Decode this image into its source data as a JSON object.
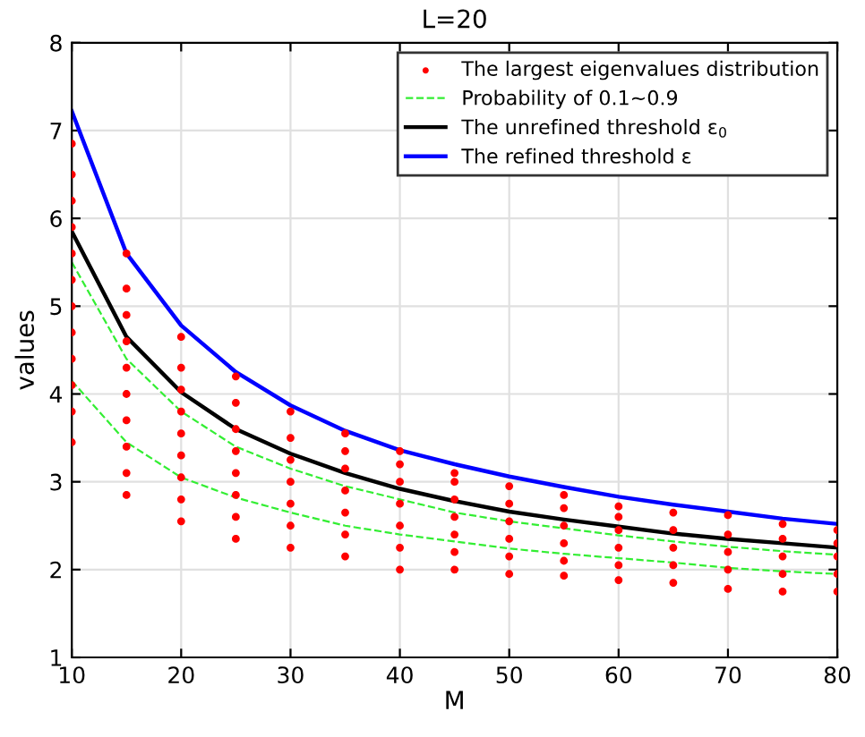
{
  "chart_data": {
    "type": "line",
    "title": "L=20",
    "xlabel": "M",
    "ylabel": "values",
    "xlim": [
      10,
      80
    ],
    "ylim": [
      1,
      8
    ],
    "xticks": [
      10,
      20,
      30,
      40,
      50,
      60,
      70,
      80
    ],
    "yticks": [
      1,
      2,
      3,
      4,
      5,
      6,
      7,
      8
    ],
    "grid": true,
    "legend": "top right",
    "series": [
      {
        "name": "The largest eigenvalues distribution",
        "type": "scatter",
        "marker": "circle",
        "color": "#ff0000",
        "x": [
          10,
          10,
          10,
          10,
          10,
          10,
          10,
          10,
          10,
          10,
          10,
          10,
          15,
          15,
          15,
          15,
          15,
          15,
          15,
          15,
          15,
          15,
          20,
          20,
          20,
          20,
          20,
          20,
          20,
          20,
          20,
          25,
          25,
          25,
          25,
          25,
          25,
          25,
          25,
          30,
          30,
          30,
          30,
          30,
          30,
          30,
          35,
          35,
          35,
          35,
          35,
          35,
          35,
          40,
          40,
          40,
          40,
          40,
          40,
          40,
          45,
          45,
          45,
          45,
          45,
          45,
          45,
          50,
          50,
          50,
          50,
          50,
          50,
          55,
          55,
          55,
          55,
          55,
          55,
          60,
          60,
          60,
          60,
          60,
          60,
          65,
          65,
          65,
          65,
          65,
          70,
          70,
          70,
          70,
          70,
          75,
          75,
          75,
          75,
          75,
          80,
          80,
          80,
          80,
          80
        ],
        "values": [
          3.45,
          3.8,
          4.1,
          4.4,
          4.7,
          5.0,
          5.3,
          5.6,
          5.9,
          6.2,
          6.5,
          6.85,
          2.85,
          3.1,
          3.4,
          3.7,
          4.0,
          4.3,
          4.6,
          4.9,
          5.2,
          5.6,
          2.55,
          2.8,
          3.05,
          3.3,
          3.55,
          3.8,
          4.05,
          4.3,
          4.65,
          2.35,
          2.6,
          2.85,
          3.1,
          3.35,
          3.6,
          3.9,
          4.2,
          2.25,
          2.5,
          2.75,
          3.0,
          3.25,
          3.5,
          3.8,
          2.15,
          2.4,
          2.65,
          2.9,
          3.15,
          3.35,
          3.55,
          2.0,
          2.25,
          2.5,
          2.75,
          3.0,
          3.2,
          3.35,
          2.0,
          2.2,
          2.4,
          2.6,
          2.8,
          3.0,
          3.1,
          1.95,
          2.15,
          2.35,
          2.55,
          2.75,
          2.95,
          1.93,
          2.1,
          2.3,
          2.5,
          2.7,
          2.85,
          1.88,
          2.05,
          2.25,
          2.45,
          2.6,
          2.72,
          1.85,
          2.05,
          2.25,
          2.45,
          2.65,
          1.78,
          2.0,
          2.2,
          2.4,
          2.62,
          1.75,
          1.95,
          2.15,
          2.35,
          2.52,
          1.75,
          1.95,
          2.15,
          2.3,
          2.45
        ]
      },
      {
        "name": "Probability of 0.1~0.9",
        "line_style": "dashed",
        "color": "#33ee33",
        "x": [
          10,
          15,
          20,
          25,
          30,
          35,
          40,
          45,
          50,
          55,
          60,
          65,
          70,
          75,
          80
        ],
        "values": [
          5.5,
          4.4,
          3.8,
          3.4,
          3.15,
          2.95,
          2.8,
          2.65,
          2.55,
          2.47,
          2.39,
          2.32,
          2.26,
          2.21,
          2.17
        ]
      },
      {
        "line_style": "dashed",
        "color": "#33ee33",
        "x": [
          10,
          15,
          20,
          25,
          30,
          35,
          40,
          45,
          50,
          55,
          60,
          65,
          70,
          75,
          80
        ],
        "values": [
          4.15,
          3.45,
          3.05,
          2.82,
          2.65,
          2.5,
          2.4,
          2.32,
          2.24,
          2.18,
          2.13,
          2.08,
          2.02,
          1.98,
          1.95
        ]
      },
      {
        "name": "The unrefined threshold ε$_{0}$",
        "line_style": "solid",
        "color": "#000000",
        "x": [
          10,
          15,
          20,
          25,
          30,
          35,
          40,
          45,
          50,
          55,
          60,
          65,
          70,
          75,
          80
        ],
        "values": [
          5.85,
          4.65,
          4.02,
          3.6,
          3.32,
          3.1,
          2.92,
          2.78,
          2.66,
          2.57,
          2.49,
          2.41,
          2.35,
          2.3,
          2.25
        ]
      },
      {
        "name": "The refined threshold ε",
        "line_style": "solid",
        "color": "#0000ff",
        "x": [
          10,
          15,
          20,
          25,
          30,
          35,
          40,
          45,
          50,
          55,
          60,
          65,
          70,
          75,
          80
        ],
        "values": [
          7.22,
          5.6,
          4.78,
          4.25,
          3.87,
          3.58,
          3.36,
          3.2,
          3.06,
          2.94,
          2.83,
          2.74,
          2.66,
          2.58,
          2.52
        ]
      }
    ]
  }
}
